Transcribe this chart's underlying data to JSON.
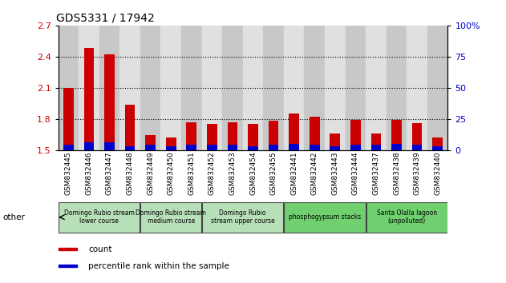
{
  "title": "GDS5331 / 17942",
  "samples": [
    "GSM832445",
    "GSM832446",
    "GSM832447",
    "GSM832448",
    "GSM832449",
    "GSM832450",
    "GSM832451",
    "GSM832452",
    "GSM832453",
    "GSM832454",
    "GSM832455",
    "GSM832441",
    "GSM832442",
    "GSM832443",
    "GSM832444",
    "GSM832437",
    "GSM832438",
    "GSM832439",
    "GSM832440"
  ],
  "count_values": [
    2.1,
    2.48,
    2.42,
    1.94,
    1.64,
    1.62,
    1.77,
    1.75,
    1.77,
    1.75,
    1.78,
    1.85,
    1.82,
    1.66,
    1.79,
    1.66,
    1.79,
    1.76,
    1.62
  ],
  "percentile_values": [
    4,
    6,
    6,
    3,
    4,
    3,
    4,
    4,
    4,
    3,
    4,
    5,
    4,
    3,
    4,
    4,
    5,
    4,
    3
  ],
  "ylim_left": [
    1.5,
    2.7
  ],
  "ylim_right": [
    0,
    100
  ],
  "yticks_left": [
    1.5,
    1.8,
    2.1,
    2.4,
    2.7
  ],
  "yticks_right": [
    0,
    25,
    50,
    75,
    100
  ],
  "count_color": "#cc0000",
  "percentile_color": "#0000cc",
  "bg_color_odd": "#c8c8c8",
  "bg_color_even": "#e0e0e0",
  "groups": [
    {
      "label": "Domingo Rubio stream\nlower course",
      "start": 0,
      "end": 3,
      "color": "#b8e0b8"
    },
    {
      "label": "Domingo Rubio stream\nmedium course",
      "start": 4,
      "end": 6,
      "color": "#b8e0b8"
    },
    {
      "label": "Domingo Rubio\nstream upper course",
      "start": 7,
      "end": 10,
      "color": "#b8e0b8"
    },
    {
      "label": "phosphogypsum stacks",
      "start": 11,
      "end": 14,
      "color": "#70d070"
    },
    {
      "label": "Santa Olalla lagoon\n(unpolluted)",
      "start": 15,
      "end": 18,
      "color": "#70d070"
    }
  ],
  "legend_items": [
    {
      "label": "count",
      "color": "#cc0000"
    },
    {
      "label": "percentile rank within the sample",
      "color": "#0000cc"
    }
  ],
  "other_label": "other",
  "title_fontsize": 10,
  "ylabel_left_color": "#cc0000",
  "ylabel_right_color": "#0000cc",
  "dotted_lines": [
    1.8,
    2.1,
    2.4
  ],
  "right_tick_labels": [
    "0",
    "25",
    "50",
    "75",
    "100%"
  ]
}
